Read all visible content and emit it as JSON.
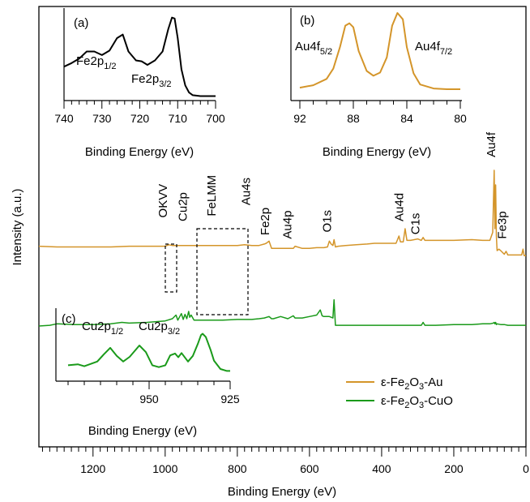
{
  "chart_data": [
    {
      "id": "main",
      "type": "line",
      "xlabel": "Binding Energy (eV)",
      "ylabel": "Intensity (a.u.)",
      "xlim": [
        1350,
        0
      ],
      "xticks": [
        1200,
        1000,
        800,
        600,
        400,
        200,
        0
      ],
      "x_reversed": true,
      "legend": {
        "placement": "bottom-right",
        "entries": [
          "ε-Fe2O3-Au",
          "ε-Fe2O3-CuO"
        ]
      },
      "series": [
        {
          "name": "ε-Fe2O3-Au",
          "color": "#d4952a",
          "x": [
            1350,
            1300,
            1250,
            1200,
            1150,
            1100,
            1050,
            1000,
            990,
            980,
            960,
            940,
            920,
            900,
            870,
            840,
            800,
            780,
            760,
            740,
            725,
            720,
            712,
            705,
            700,
            680,
            660,
            645,
            640,
            620,
            600,
            580,
            560,
            550,
            545,
            540,
            535,
            532,
            528,
            520,
            500,
            470,
            440,
            420,
            400,
            380,
            360,
            352,
            348,
            340,
            335,
            330,
            320,
            300,
            290,
            285,
            280,
            250,
            200,
            150,
            120,
            100,
            92,
            88,
            86,
            84,
            82,
            80,
            75,
            70,
            60,
            55,
            50,
            40,
            25,
            12,
            8,
            5,
            0
          ],
          "y": [
            0.16,
            0.15,
            0.15,
            0.15,
            0.15,
            0.16,
            0.16,
            0.16,
            0.18,
            0.17,
            0.17,
            0.17,
            0.17,
            0.17,
            0.17,
            0.17,
            0.17,
            0.18,
            0.17,
            0.17,
            0.19,
            0.2,
            0.23,
            0.13,
            0.13,
            0.13,
            0.13,
            0.13,
            0.16,
            0.13,
            0.13,
            0.14,
            0.14,
            0.15,
            0.23,
            0.19,
            0.17,
            0.25,
            0.15,
            0.16,
            0.17,
            0.18,
            0.19,
            0.2,
            0.2,
            0.2,
            0.2,
            0.3,
            0.22,
            0.22,
            0.4,
            0.24,
            0.24,
            0.26,
            0.24,
            0.28,
            0.24,
            0.24,
            0.24,
            0.25,
            0.24,
            0.24,
            0.35,
            1.2,
            0.4,
            1.0,
            0.3,
            0.1,
            0.12,
            0.1,
            0.05,
            0.09,
            0.04,
            0.04,
            0.04,
            0.04,
            0.12,
            0.03,
            0.03
          ]
        },
        {
          "name": "ε-Fe2O3-CuO",
          "color": "#1a9a1a",
          "x": [
            1350,
            1320,
            1300,
            1250,
            1200,
            1150,
            1120,
            1100,
            1050,
            1000,
            980,
            970,
            965,
            955,
            950,
            945,
            940,
            935,
            932,
            928,
            920,
            900,
            870,
            840,
            800,
            780,
            760,
            740,
            725,
            712,
            705,
            700,
            680,
            660,
            645,
            640,
            620,
            600,
            580,
            570,
            565,
            560,
            545,
            540,
            535,
            532,
            528,
            520,
            500,
            460,
            420,
            380,
            340,
            300,
            290,
            285,
            280,
            250,
            200,
            150,
            120,
            100,
            90,
            88,
            86,
            84,
            82,
            80,
            70,
            60,
            50,
            40,
            20,
            5,
            0
          ],
          "y": [
            -0.1,
            -0.09,
            -0.07,
            -0.08,
            -0.08,
            -0.07,
            -0.05,
            -0.06,
            -0.05,
            -0.03,
            0.0,
            0.05,
            -0.02,
            0.07,
            -0.01,
            0.06,
            0.0,
            0.1,
            0.02,
            0.05,
            -0.02,
            -0.02,
            -0.02,
            -0.02,
            -0.01,
            -0.01,
            -0.01,
            0.0,
            0.01,
            0.03,
            0.0,
            0.0,
            0.03,
            0.0,
            0.04,
            0.01,
            0.01,
            0.03,
            0.05,
            0.12,
            0.04,
            0.03,
            0.03,
            0.02,
            0.01,
            0.26,
            -0.09,
            -0.09,
            -0.09,
            -0.09,
            -0.09,
            -0.09,
            -0.09,
            -0.09,
            -0.09,
            -0.05,
            -0.09,
            -0.09,
            -0.08,
            -0.08,
            -0.07,
            -0.07,
            -0.06,
            -0.05,
            -0.07,
            -0.05,
            -0.08,
            -0.07,
            -0.08,
            -0.08,
            -0.09,
            -0.09,
            -0.09,
            -0.09,
            -0.09
          ]
        }
      ],
      "annotations": [
        {
          "text": "OKVV",
          "x": 995,
          "y": 0.55
        },
        {
          "text": "Cu2p",
          "x": 940,
          "y": 0.5
        },
        {
          "text": "FeLMM",
          "x": 860,
          "y": 0.57
        },
        {
          "text": "Au4s",
          "x": 765,
          "y": 0.72
        },
        {
          "text": "Fe2p",
          "x": 712,
          "y": 0.31
        },
        {
          "text": "Au4p",
          "x": 650,
          "y": 0.26
        },
        {
          "text": "O1s",
          "x": 540,
          "y": 0.35
        },
        {
          "text": "Au4d",
          "x": 340,
          "y": 0.5
        },
        {
          "text": "C1s",
          "x": 295,
          "y": 0.32
        },
        {
          "text": "Au4f",
          "x": 85,
          "y": 1.38
        },
        {
          "text": "Fe3p",
          "x": 55,
          "y": 0.26
        }
      ]
    },
    {
      "id": "a",
      "panel_label": "(a)",
      "type": "line",
      "xlabel": "Binding Energy (eV)",
      "xlim": [
        740,
        700
      ],
      "xticks": [
        740,
        730,
        720,
        710,
        700
      ],
      "x_reversed": true,
      "series": [
        {
          "color": "#000000",
          "x": [
            740,
            738,
            736,
            734,
            732,
            730,
            728,
            726,
            724.5,
            723,
            721,
            719.5,
            718,
            716,
            714,
            712.5,
            711.5,
            710.8,
            710,
            709,
            708,
            707,
            706,
            704,
            702,
            700
          ],
          "y": [
            0.38,
            0.42,
            0.47,
            0.55,
            0.55,
            0.51,
            0.56,
            0.7,
            0.74,
            0.55,
            0.45,
            0.44,
            0.4,
            0.45,
            0.55,
            0.8,
            0.93,
            0.92,
            0.7,
            0.35,
            0.17,
            0.09,
            0.06,
            0.05,
            0.05,
            0.05
          ]
        }
      ],
      "annotations": [
        {
          "text": "Fe2p",
          "sub": "1/2"
        },
        {
          "text": "Fe2p",
          "sub": "3/2"
        }
      ]
    },
    {
      "id": "b",
      "panel_label": "(b)",
      "type": "line",
      "xlabel": "Binding Energy (eV)",
      "xlim": [
        92,
        80
      ],
      "xticks": [
        92,
        88,
        84,
        80
      ],
      "x_reversed": true,
      "series": [
        {
          "color": "#d4952a",
          "x": [
            92,
            91,
            90,
            89.5,
            89,
            88.6,
            88.3,
            88,
            87.6,
            87,
            86.5,
            86,
            85.5,
            85.1,
            84.7,
            84.3,
            84,
            83.5,
            83,
            82,
            81,
            80
          ],
          "y": [
            0.04,
            0.07,
            0.15,
            0.28,
            0.55,
            0.82,
            0.85,
            0.8,
            0.5,
            0.25,
            0.19,
            0.23,
            0.42,
            0.82,
            0.98,
            0.9,
            0.55,
            0.22,
            0.08,
            0.03,
            0.02,
            0.02
          ]
        }
      ],
      "annotations": [
        {
          "text": "Au4f",
          "sub": "5/2"
        },
        {
          "text": "Au4f",
          "sub": "7/2"
        }
      ]
    },
    {
      "id": "c",
      "panel_label": "(c)",
      "type": "line",
      "xlabel": "Binding Energy (eV)",
      "xlim": [
        975,
        925
      ],
      "xticks": [
        950,
        925
      ],
      "x_reversed": true,
      "series": [
        {
          "color": "#1a9a1a",
          "x": [
            975,
            972,
            970,
            966,
            964,
            962,
            960,
            958,
            956,
            954.5,
            953,
            951,
            949,
            947,
            945,
            943.5,
            942,
            941,
            940,
            938,
            936.5,
            935,
            934,
            933.5,
            932.5,
            931,
            930,
            928,
            926,
            925
          ],
          "y": [
            0.2,
            0.22,
            0.18,
            0.28,
            0.43,
            0.57,
            0.4,
            0.28,
            0.38,
            0.5,
            0.62,
            0.48,
            0.2,
            0.16,
            0.2,
            0.41,
            0.45,
            0.37,
            0.46,
            0.28,
            0.4,
            0.65,
            0.84,
            0.87,
            0.8,
            0.52,
            0.3,
            0.12,
            0.08,
            0.08
          ]
        }
      ],
      "annotations": [
        {
          "text": "Cu2p",
          "sub": "1/2"
        },
        {
          "text": "Cu2p",
          "sub": "3/2"
        }
      ]
    }
  ],
  "legend_labels": {
    "au": {
      "pre": "ε-Fe",
      "s1": "2",
      "mid": "O",
      "s2": "3",
      "post": "-Au"
    },
    "cuo": {
      "pre": "ε-Fe",
      "s1": "2",
      "mid": "O",
      "s2": "3",
      "post": "-CuO"
    }
  }
}
